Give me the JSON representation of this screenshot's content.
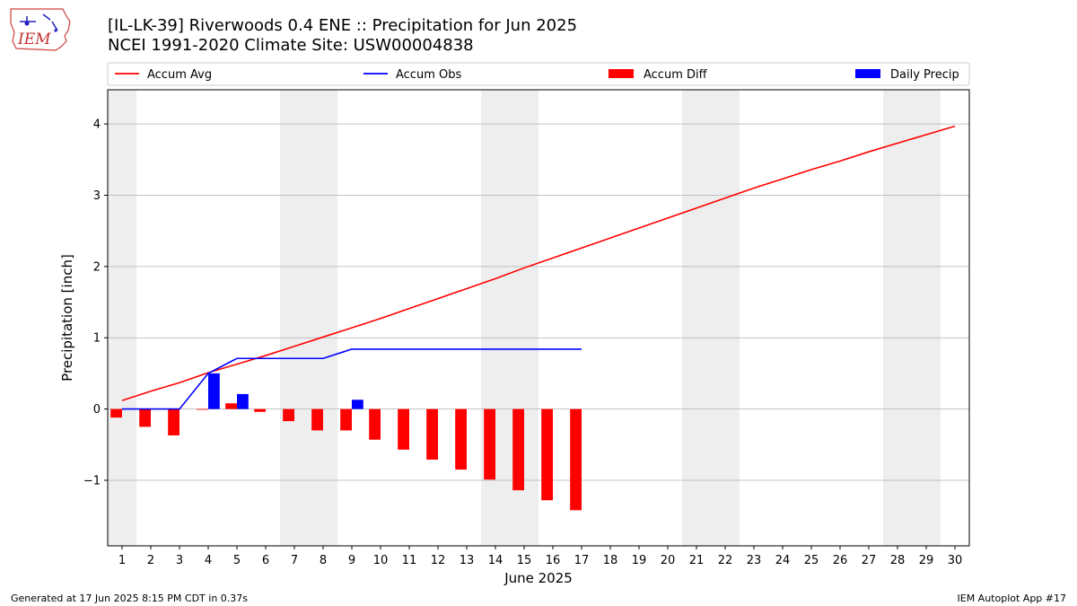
{
  "header": {
    "title_line1": "[IL-LK-39] Riverwoods 0.4 ENE :: Precipitation for Jun 2025",
    "title_line2": "NCEI 1991-2020 Climate Site: USW00004838"
  },
  "logo": {
    "text": "IEM",
    "icon": "iem-iowa-logo-icon"
  },
  "footer": {
    "left": "Generated at 17 Jun 2025 8:15 PM CDT in 0.37s",
    "right": "IEM Autoplot App #17"
  },
  "colors": {
    "avg": "#ff0000",
    "obs": "#0000ff",
    "diff": "#ff0000",
    "daily": "#0000ff",
    "weekend_shade": "#eeeeee",
    "grid": "#b0b0b0"
  },
  "chart_data": {
    "type": "bar",
    "title": "[IL-LK-39] Riverwoods 0.4 ENE :: Precipitation for Jun 2025",
    "xlabel": "June 2025",
    "ylabel": "Precipitation [inch]",
    "ylim": [
      -1.92,
      4.48
    ],
    "yticks": [
      -1,
      0,
      1,
      2,
      3,
      4
    ],
    "ytick_labels": [
      "−1",
      "0",
      "1",
      "2",
      "3",
      "4"
    ],
    "xlim": [
      0.5,
      30.5
    ],
    "x": [
      1,
      2,
      3,
      4,
      5,
      6,
      7,
      8,
      9,
      10,
      11,
      12,
      13,
      14,
      15,
      16,
      17,
      18,
      19,
      20,
      21,
      22,
      23,
      24,
      25,
      26,
      27,
      28,
      29,
      30
    ],
    "x_tick_labels": [
      "1",
      "2",
      "3",
      "4",
      "5",
      "6",
      "7",
      "8",
      "9",
      "10",
      "11",
      "12",
      "13",
      "14",
      "15",
      "16",
      "17",
      "18",
      "19",
      "20",
      "21",
      "22",
      "23",
      "24",
      "25",
      "26",
      "27",
      "28",
      "29",
      "30"
    ],
    "grid": "horizontal",
    "legend_position": "top",
    "weekend_bands": [
      [
        0.5,
        1.5
      ],
      [
        6.5,
        8.5
      ],
      [
        13.5,
        15.5
      ],
      [
        20.5,
        22.5
      ],
      [
        27.5,
        29.5
      ]
    ],
    "series": [
      {
        "name": "Accum Avg",
        "kind": "line",
        "x": [
          1,
          2,
          3,
          4,
          5,
          6,
          7,
          8,
          9,
          10,
          11,
          12,
          13,
          14,
          15,
          16,
          17,
          18,
          19,
          20,
          21,
          22,
          23,
          24,
          25,
          26,
          27,
          28,
          29,
          30
        ],
        "values": [
          0.12,
          0.25,
          0.37,
          0.51,
          0.63,
          0.75,
          0.88,
          1.01,
          1.14,
          1.27,
          1.41,
          1.55,
          1.69,
          1.83,
          1.98,
          2.12,
          2.26,
          2.4,
          2.54,
          2.68,
          2.82,
          2.96,
          3.1,
          3.23,
          3.36,
          3.48,
          3.61,
          3.73,
          3.85,
          3.97
        ]
      },
      {
        "name": "Accum Obs",
        "kind": "line",
        "x": [
          1,
          2,
          3,
          4,
          5,
          6,
          7,
          8,
          9,
          10,
          11,
          12,
          13,
          14,
          15,
          16,
          17
        ],
        "values": [
          0,
          0,
          0,
          0.5,
          0.71,
          0.71,
          0.71,
          0.71,
          0.84,
          0.84,
          0.84,
          0.84,
          0.84,
          0.84,
          0.84,
          0.84,
          0.84
        ]
      },
      {
        "name": "Accum Diff",
        "kind": "bar",
        "x": [
          1,
          2,
          3,
          4,
          5,
          6,
          7,
          8,
          9,
          10,
          11,
          12,
          13,
          14,
          15,
          16,
          17
        ],
        "values": [
          -0.12,
          -0.25,
          -0.37,
          -0.01,
          0.08,
          -0.04,
          -0.17,
          -0.3,
          -0.3,
          -0.43,
          -0.57,
          -0.71,
          -0.85,
          -0.99,
          -1.14,
          -1.28,
          -1.42
        ]
      },
      {
        "name": "Daily Precip",
        "kind": "bar",
        "x": [
          4,
          5,
          9
        ],
        "values": [
          0.5,
          0.21,
          0.13
        ]
      }
    ]
  }
}
